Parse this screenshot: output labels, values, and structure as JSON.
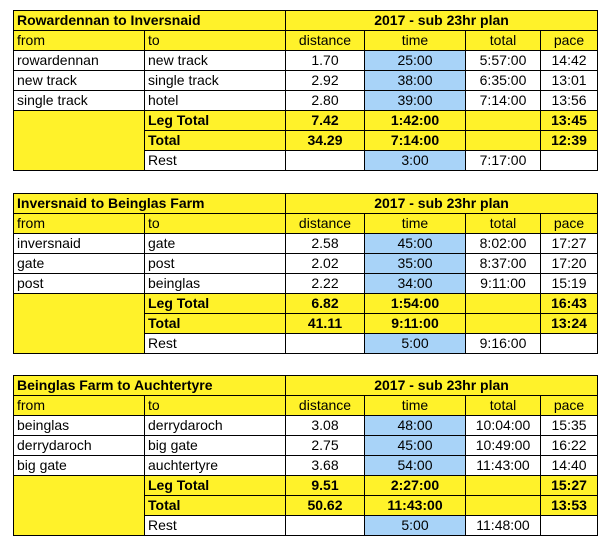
{
  "plan_label": "2017 - sub 23hr plan",
  "columns": {
    "from": "from",
    "to": "to",
    "distance": "distance",
    "time": "time",
    "total": "total",
    "pace": "pace"
  },
  "colors": {
    "header_yellow": "#fff22a",
    "time_blue": "#a8d3f8"
  },
  "legs": [
    {
      "title": "Rowardennan to Inversnaid",
      "rows": [
        {
          "from": "rowardennan",
          "to": "new track",
          "distance": "1.70",
          "time": "25:00",
          "total": "5:57:00",
          "pace": "14:42"
        },
        {
          "from": "new track",
          "to": "single track",
          "distance": "2.92",
          "time": "38:00",
          "total": "6:35:00",
          "pace": "13:01"
        },
        {
          "from": "single track",
          "to": "hotel",
          "distance": "2.80",
          "time": "39:00",
          "total": "7:14:00",
          "pace": "13:56"
        }
      ],
      "leg_total": {
        "label": "Leg Total",
        "distance": "7.42",
        "time": "1:42:00",
        "pace": "13:45"
      },
      "total": {
        "label": "Total",
        "distance": "34.29",
        "time": "7:14:00",
        "pace": "12:39"
      },
      "rest": {
        "label": "Rest",
        "time": "3:00",
        "total": "7:17:00"
      }
    },
    {
      "title": "Inversnaid to Beinglas Farm",
      "rows": [
        {
          "from": "inversnaid",
          "to": "gate",
          "distance": "2.58",
          "time": "45:00",
          "total": "8:02:00",
          "pace": "17:27"
        },
        {
          "from": "gate",
          "to": "post",
          "distance": "2.02",
          "time": "35:00",
          "total": "8:37:00",
          "pace": "17:20"
        },
        {
          "from": "post",
          "to": "beinglas",
          "distance": "2.22",
          "time": "34:00",
          "total": "9:11:00",
          "pace": "15:19"
        }
      ],
      "leg_total": {
        "label": "Leg Total",
        "distance": "6.82",
        "time": "1:54:00",
        "pace": "16:43"
      },
      "total": {
        "label": "Total",
        "distance": "41.11",
        "time": "9:11:00",
        "pace": "13:24"
      },
      "rest": {
        "label": "Rest",
        "time": "5:00",
        "total": "9:16:00"
      }
    },
    {
      "title": "Beinglas Farm to Auchtertyre",
      "rows": [
        {
          "from": "beinglas",
          "to": "derrydaroch",
          "distance": "3.08",
          "time": "48:00",
          "total": "10:04:00",
          "pace": "15:35"
        },
        {
          "from": "derrydaroch",
          "to": "big gate",
          "distance": "2.75",
          "time": "45:00",
          "total": "10:49:00",
          "pace": "16:22"
        },
        {
          "from": "big gate",
          "to": "auchtertyre",
          "distance": "3.68",
          "time": "54:00",
          "total": "11:43:00",
          "pace": "14:40"
        }
      ],
      "leg_total": {
        "label": "Leg Total",
        "distance": "9.51",
        "time": "2:27:00",
        "pace": "15:27"
      },
      "total": {
        "label": "Total",
        "distance": "50.62",
        "time": "11:43:00",
        "pace": "13:53"
      },
      "rest": {
        "label": "Rest",
        "time": "5:00",
        "total": "11:48:00"
      }
    }
  ]
}
